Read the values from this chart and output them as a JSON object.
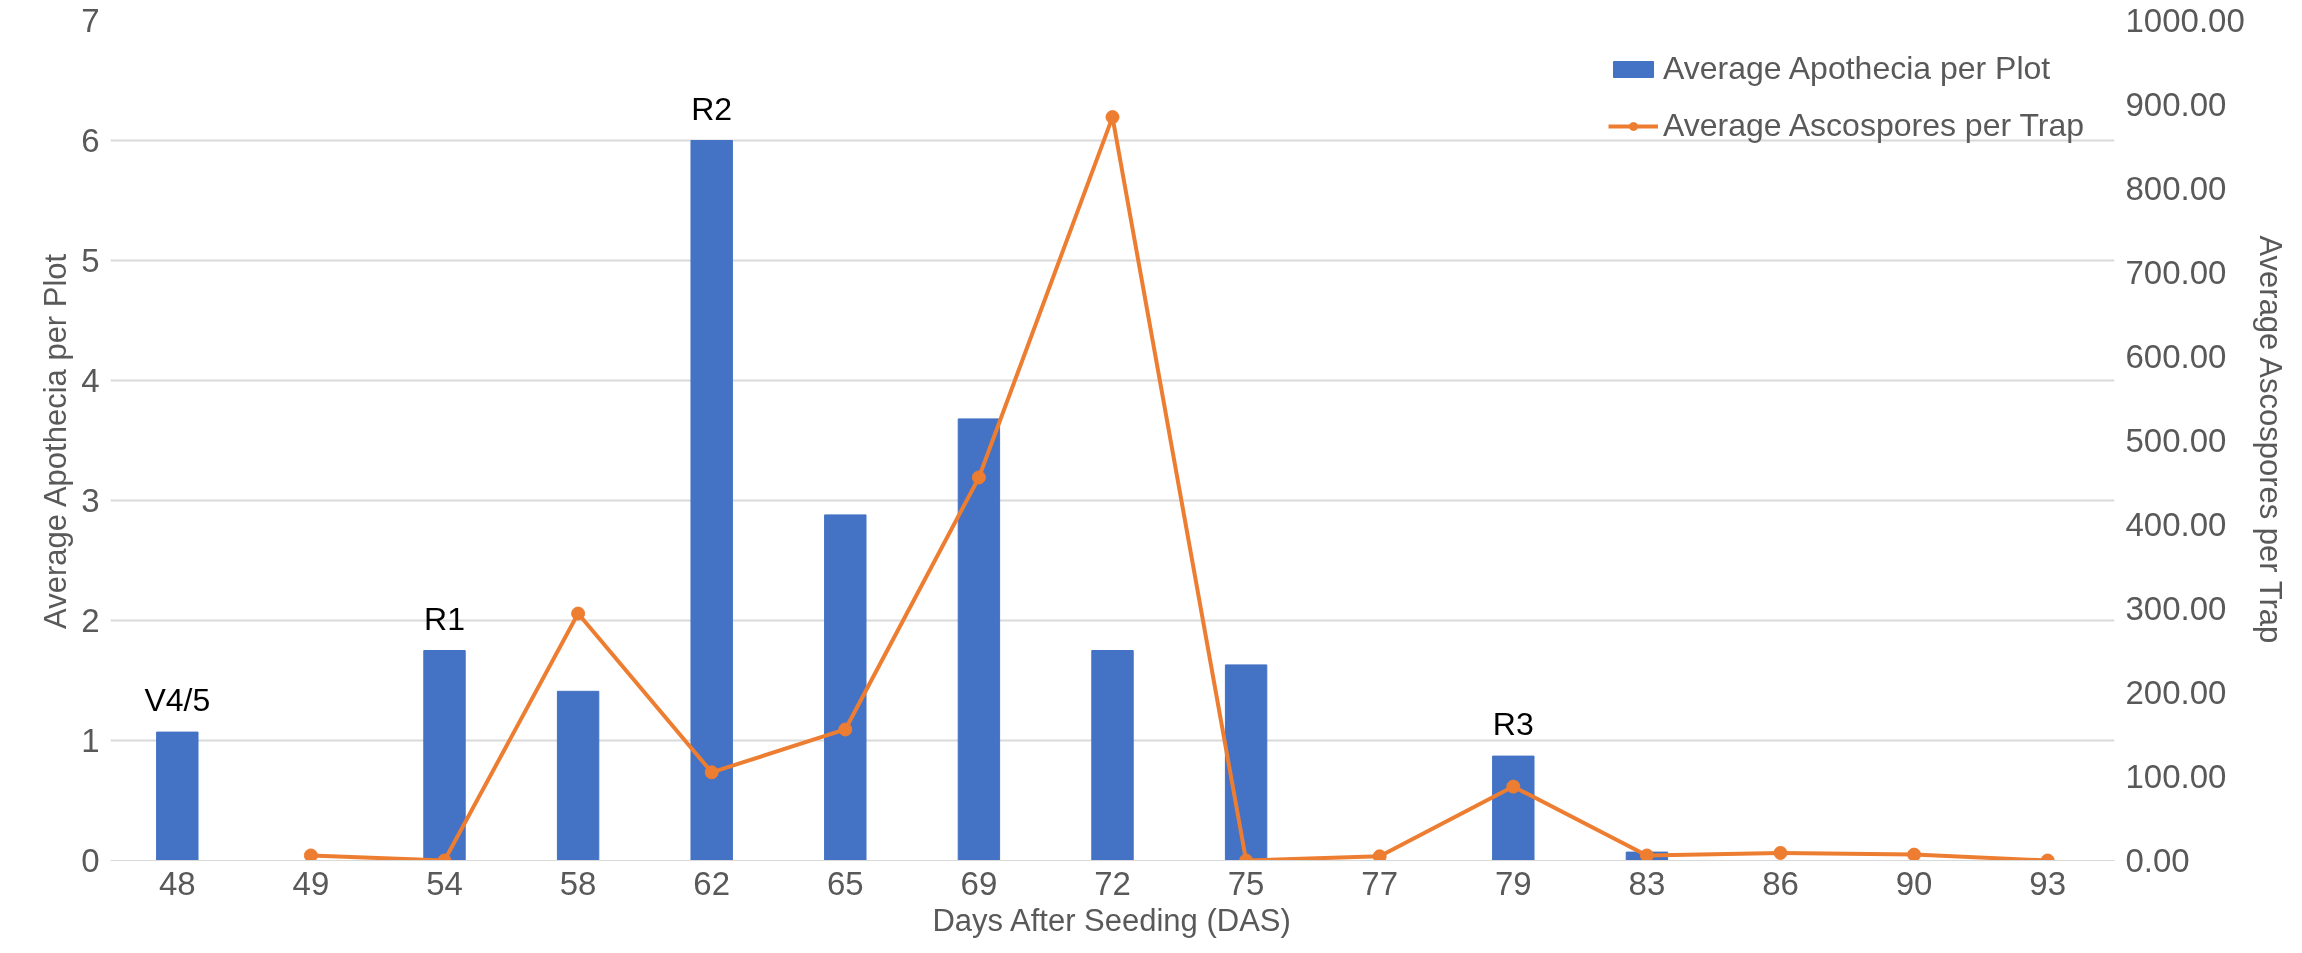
{
  "chart_data": {
    "type": "bar",
    "xlabel": "Days After Seeding (DAS)",
    "ylabel": "Average Apothecia per Plot",
    "y2label": "Average Ascospores per Trap",
    "categories": [
      "48",
      "49",
      "54",
      "58",
      "62",
      "65",
      "69",
      "72",
      "75",
      "77",
      "79",
      "83",
      "86",
      "90",
      "93"
    ],
    "series": [
      {
        "name": "Average Apothecia per Plot",
        "color": "#4472c4",
        "values": [
          1.07,
          null,
          1.75,
          1.41,
          6.0,
          2.88,
          3.68,
          1.75,
          1.63,
          null,
          0.87,
          0.07,
          null,
          null,
          null
        ]
      },
      {
        "name": "Average Ascospores per Trap",
        "type": "line",
        "axis": "y2",
        "color": "#ed7d31",
        "marker": "circle",
        "values": [
          null,
          6,
          0,
          294,
          105,
          156,
          456,
          885,
          0,
          5,
          88,
          6,
          9,
          7,
          0
        ]
      }
    ],
    "ylim": [
      0,
      7
    ],
    "yticks": [
      0,
      1,
      2,
      3,
      4,
      5,
      6,
      7
    ],
    "y2lim": [
      0,
      1000
    ],
    "y2ticks": [
      {
        "value": 0,
        "label": "0.00"
      },
      {
        "value": 100,
        "label": "100.00"
      },
      {
        "value": 200,
        "label": "200.00"
      },
      {
        "value": 300,
        "label": "300.00"
      },
      {
        "value": 400,
        "label": "400.00"
      },
      {
        "value": 500,
        "label": "500.00"
      },
      {
        "value": 600,
        "label": "600.00"
      },
      {
        "value": 700,
        "label": "700.00"
      },
      {
        "value": 800,
        "label": "800.00"
      },
      {
        "value": 900,
        "label": "900.00"
      },
      {
        "value": 1000,
        "label": "1000.00"
      }
    ],
    "annotations": [
      {
        "text": "V4/5",
        "x": "48",
        "y": 1.07
      },
      {
        "text": "R1",
        "x": "54",
        "y": 1.75
      },
      {
        "text": "R2",
        "x": "62",
        "y": 6.0
      },
      {
        "text": "R3",
        "x": "79",
        "y": 0.87
      }
    ],
    "grid": "y",
    "legend": "top right"
  }
}
